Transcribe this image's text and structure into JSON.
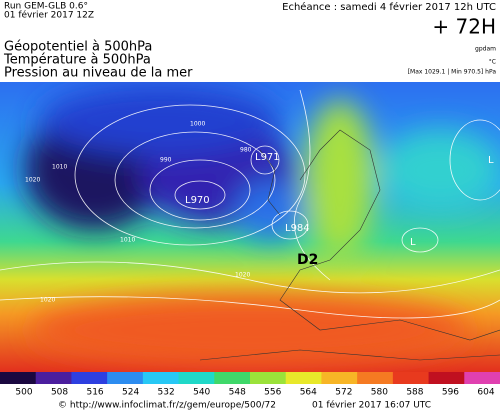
{
  "header": {
    "run": "Run GEM-GLB 0.6°",
    "run_date": "01 février 2017 12Z",
    "forecast": "Echéance : samedi 4 février 2017 12h UTC",
    "lead": "+ 72H",
    "fields": [
      "Géopotentiel à 500hPa",
      "Température à 500hPa",
      "Pression au niveau de la mer"
    ],
    "units": [
      "gpdam",
      "°C",
      "[Max 1029.1 | Min 970.5] hPa"
    ]
  },
  "map": {
    "lows": [
      "L970",
      "L971",
      "L984",
      "L",
      "L"
    ],
    "isobars": [
      "1010",
      "1000",
      "990",
      "980",
      "1020",
      "1020",
      "1010",
      "1020"
    ],
    "region": "D2"
  },
  "colorbar": {
    "ticks": [
      500,
      508,
      516,
      524,
      532,
      540,
      548,
      556,
      564,
      572,
      580,
      588,
      596,
      604
    ],
    "colors": [
      "#1a0840",
      "#4b1e9e",
      "#2d3fe0",
      "#2c8cf0",
      "#27c8f5",
      "#1fd8c8",
      "#3fd86a",
      "#9be23a",
      "#e8e82a",
      "#f7b526",
      "#f57a22",
      "#e83a1e",
      "#c01020",
      "#e040b0"
    ]
  },
  "footer": {
    "credit": "© http://www.infoclimat.fr/z/gem/europe/500/72",
    "timestamp": "01 février 2017 16:07 UTC"
  }
}
